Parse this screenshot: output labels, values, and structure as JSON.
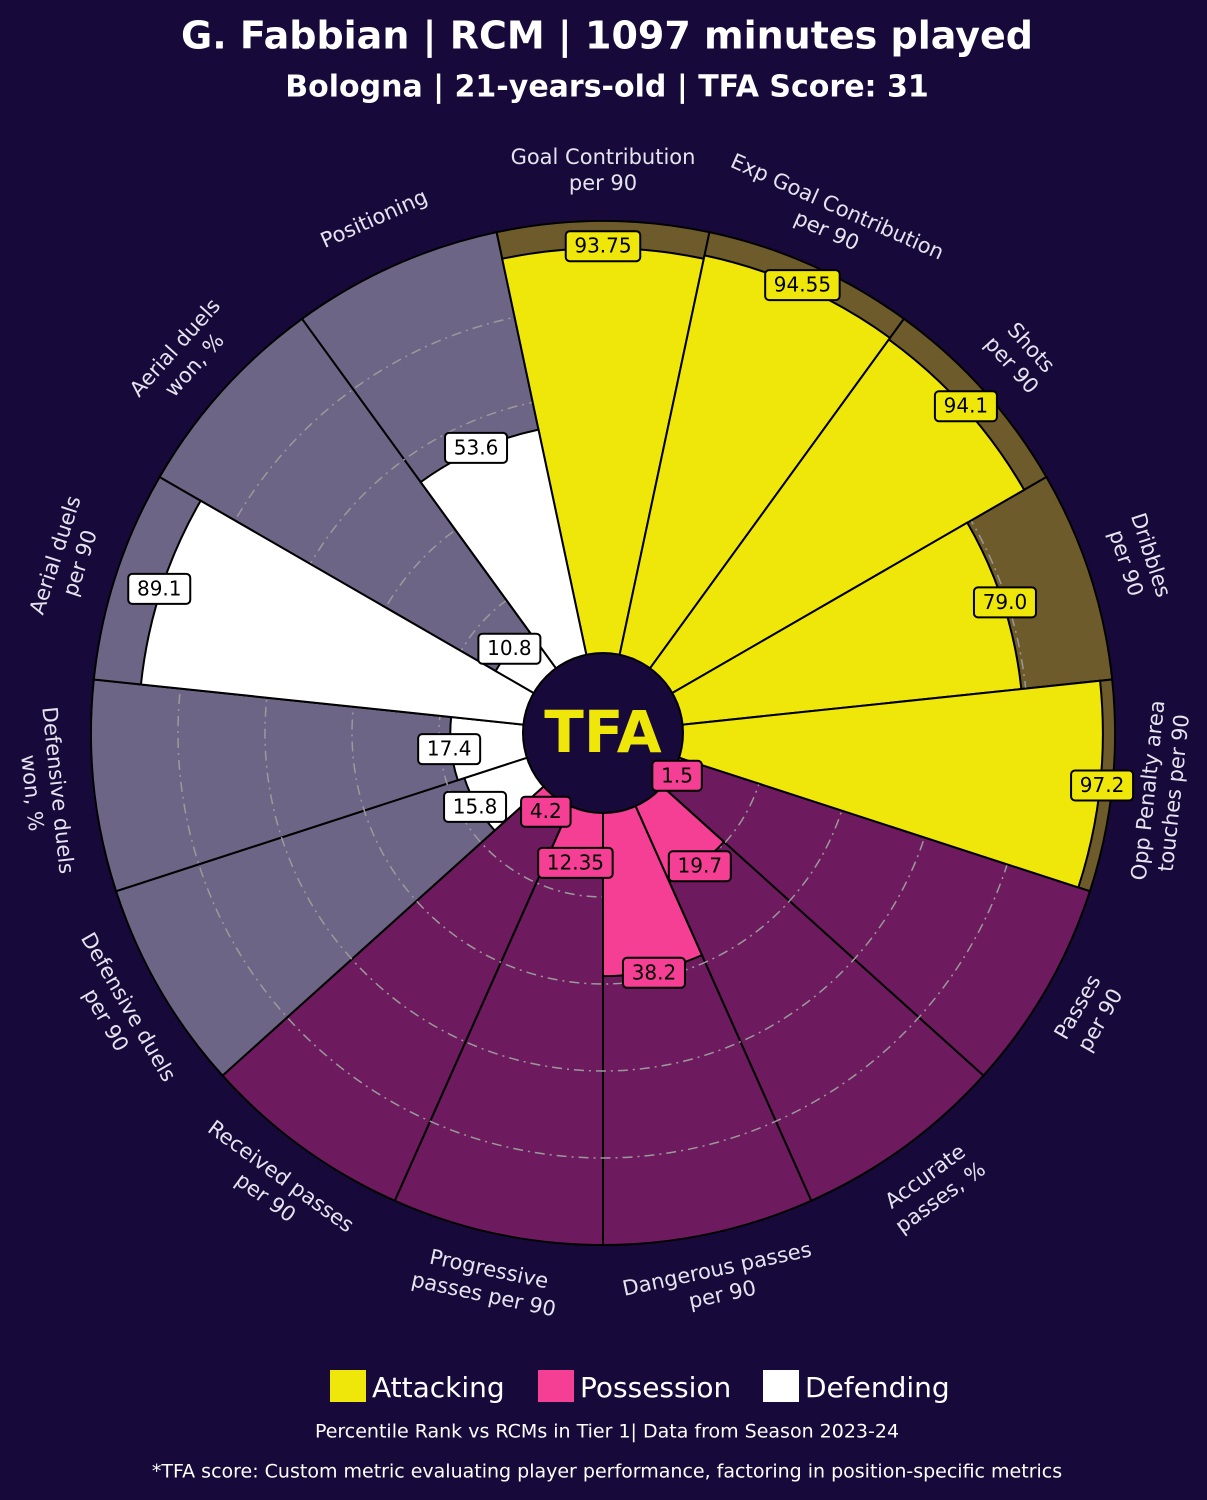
{
  "chart_data": {
    "type": "pizza",
    "title": "G. Fabbian | RCM | 1097 minutes played",
    "subtitle": "Bologna | 21-years-old | TFA Score: 31",
    "center_label": "TFA",
    "categories": [
      [
        "Goal Contribution",
        "per 90"
      ],
      [
        "Exp Goal Contribution",
        "per 90"
      ],
      [
        "Shots",
        "per 90"
      ],
      [
        "Dribbles",
        "per 90"
      ],
      [
        "Opp Penalty area",
        "touches per 90"
      ],
      [
        "Passes",
        "per 90"
      ],
      [
        "Accurate",
        "passes, %"
      ],
      [
        "Dangerous passes",
        "per 90"
      ],
      [
        "Progressive",
        "passes per 90"
      ],
      [
        "Received passes",
        "per 90"
      ],
      [
        "Defensive duels",
        "per 90"
      ],
      [
        "Defensive duels",
        "won, %"
      ],
      [
        "Aerial duels",
        "per 90"
      ],
      [
        "Aerial duels",
        "won, %"
      ],
      [
        "Positioning"
      ]
    ],
    "values": [
      93.75,
      94.55,
      94.1,
      79.0,
      97.2,
      1.5,
      19.7,
      38.2,
      12.35,
      4.2,
      15.8,
      17.4,
      89.1,
      10.8,
      53.6
    ],
    "value_labels": [
      "93.75",
      "94.55",
      "94.1",
      "79.0",
      "97.2",
      "1.5",
      "19.7",
      "38.2",
      "12.35",
      "4.2",
      "15.8",
      "17.4",
      "89.1",
      "10.8",
      "53.6"
    ],
    "groups": [
      {
        "name": "Attacking",
        "color": "#f0e70a",
        "background": "#6e5b2b"
      },
      {
        "name": "Possession",
        "color": "#f43f94",
        "background": "#6e1a5e"
      },
      {
        "name": "Defending",
        "color": "#ffffff",
        "background": "#6d6585"
      }
    ],
    "category_group": [
      0,
      0,
      0,
      0,
      0,
      1,
      1,
      1,
      1,
      1,
      2,
      2,
      2,
      2,
      2
    ],
    "rlim": [
      0,
      100
    ],
    "rticks": [
      20,
      40,
      60,
      80
    ],
    "notes": [
      "Percentile Rank vs RCMs in Tier 1| Data from Season 2023-24",
      "*TFA score: Custom metric evaluating player performance, factoring in position-specific metrics"
    ]
  }
}
